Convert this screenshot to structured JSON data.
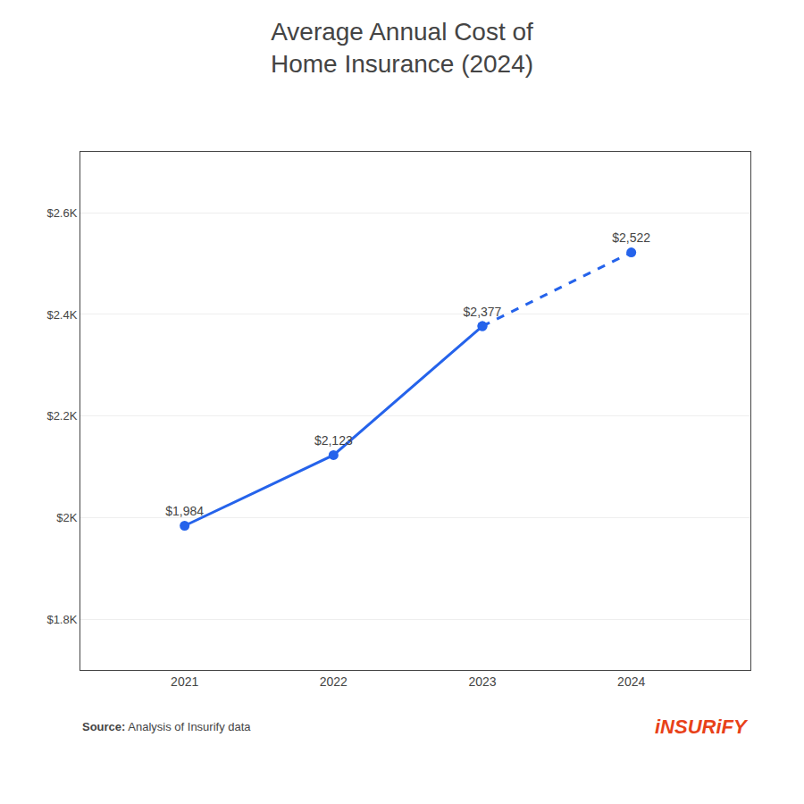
{
  "chart_data": {
    "type": "line",
    "title": [
      "Average Annual Cost of",
      "Home Insurance (2024)"
    ],
    "x": [
      2021,
      2022,
      2023,
      2024
    ],
    "series": [
      {
        "color": "#2563eb",
        "line_style": "solid",
        "marker": "circle",
        "values": [
          1984,
          2123,
          2377,
          null
        ],
        "value_labels": [
          "$1,984",
          "$2,123",
          "$2,377",
          null
        ]
      },
      {
        "color": "#2563eb",
        "line_style": "dashed",
        "marker": "circle",
        "values": [
          null,
          null,
          2377,
          2522
        ],
        "value_labels": [
          null,
          null,
          null,
          "$2,522"
        ]
      }
    ],
    "data_labels": true,
    "xlim": [
      2020.3,
      2024.8
    ],
    "xticks": [
      2021,
      2022,
      2023,
      2024
    ],
    "ylim": [
      1700,
      2720
    ],
    "yticks": [
      {
        "value": 1800,
        "label": "$1.8K"
      },
      {
        "value": 2000,
        "label": "$2K"
      },
      {
        "value": 2200,
        "label": "$2.2K"
      },
      {
        "value": 2400,
        "label": "$2.4K"
      },
      {
        "value": 2600,
        "label": "$2.6K"
      }
    ],
    "grid": true,
    "annotations": [
      {
        "text": "Source:"
      },
      {
        "text": "Analysis of Insurify data"
      },
      {
        "text": "iNSURiFY",
        "color": "#e84118"
      }
    ]
  }
}
